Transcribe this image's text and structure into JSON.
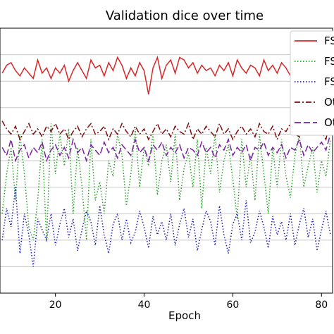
{
  "chart_data": {
    "type": "line",
    "title": "Validation dice over time",
    "xlabel": "Epoch",
    "ylabel": "",
    "xlim": [
      7.5,
      82.5
    ],
    "ylim": [
      0.0,
      1.0
    ],
    "x_ticks": [
      20,
      40,
      60,
      80
    ],
    "grid": "horizontal",
    "legend_position": "top-right",
    "series": [
      {
        "name": "FS",
        "color": "#d62728",
        "style": "solid",
        "x": [
          8,
          9,
          10,
          11,
          12,
          13,
          14,
          15,
          16,
          17,
          18,
          19,
          20,
          21,
          22,
          23,
          24,
          25,
          26,
          27,
          28,
          29,
          30,
          31,
          32,
          33,
          34,
          35,
          36,
          37,
          38,
          39,
          40,
          41,
          42,
          43,
          44,
          45,
          46,
          47,
          48,
          49,
          50,
          51,
          52,
          53,
          54,
          55,
          56,
          57,
          58,
          59,
          60,
          61,
          62,
          63,
          64,
          65,
          66,
          67,
          68,
          69,
          70,
          71,
          72,
          73,
          74,
          75,
          76,
          77,
          78,
          79,
          80,
          81,
          82
        ],
        "values": [
          0.83,
          0.86,
          0.87,
          0.84,
          0.82,
          0.85,
          0.83,
          0.81,
          0.88,
          0.83,
          0.85,
          0.81,
          0.85,
          0.83,
          0.86,
          0.8,
          0.84,
          0.87,
          0.84,
          0.81,
          0.88,
          0.85,
          0.86,
          0.82,
          0.87,
          0.84,
          0.89,
          0.86,
          0.81,
          0.85,
          0.82,
          0.87,
          0.84,
          0.75,
          0.85,
          0.89,
          0.81,
          0.86,
          0.88,
          0.83,
          0.89,
          0.88,
          0.85,
          0.87,
          0.83,
          0.86,
          0.84,
          0.85,
          0.82,
          0.86,
          0.84,
          0.87,
          0.82,
          0.88,
          0.85,
          0.83,
          0.86,
          0.85,
          0.82,
          0.88,
          0.84,
          0.86,
          0.83,
          0.87,
          0.85,
          0.82,
          0.86,
          0.84,
          0.88,
          0.87,
          0.86,
          0.89,
          0.85,
          0.87,
          0.86
        ]
      },
      {
        "name": "FS",
        "color": "#2ca02c",
        "style": "dotted",
        "x": [
          8,
          9,
          10,
          11,
          12,
          13,
          14,
          15,
          16,
          17,
          18,
          19,
          20,
          21,
          22,
          23,
          24,
          25,
          26,
          27,
          28,
          29,
          30,
          31,
          32,
          33,
          34,
          35,
          36,
          37,
          38,
          39,
          40,
          41,
          42,
          43,
          44,
          45,
          46,
          47,
          48,
          49,
          50,
          51,
          52,
          53,
          54,
          55,
          56,
          57,
          58,
          59,
          60,
          61,
          62,
          63,
          64,
          65,
          66,
          67,
          68,
          69,
          70,
          71,
          72,
          73,
          74,
          75,
          76,
          77,
          78,
          79,
          80,
          81,
          82
        ],
        "values": [
          0.3,
          0.45,
          0.55,
          0.35,
          0.6,
          0.45,
          0.25,
          0.2,
          0.35,
          0.58,
          0.2,
          0.64,
          0.45,
          0.6,
          0.48,
          0.62,
          0.3,
          0.55,
          0.4,
          0.2,
          0.58,
          0.35,
          0.42,
          0.3,
          0.5,
          0.44,
          0.6,
          0.52,
          0.33,
          0.45,
          0.62,
          0.4,
          0.55,
          0.48,
          0.6,
          0.37,
          0.5,
          0.56,
          0.42,
          0.6,
          0.35,
          0.47,
          0.53,
          0.4,
          0.58,
          0.32,
          0.55,
          0.45,
          0.6,
          0.38,
          0.5,
          0.56,
          0.43,
          0.28,
          0.58,
          0.4,
          0.52,
          0.35,
          0.6,
          0.45,
          0.3,
          0.55,
          0.4,
          0.58,
          0.44,
          0.36,
          0.52,
          0.6,
          0.4,
          0.48,
          0.55,
          0.38,
          0.5,
          0.44,
          0.58
        ]
      },
      {
        "name": "FS",
        "color": "#1f1fb4",
        "style": "dotted",
        "x": [
          8,
          9,
          10,
          11,
          12,
          13,
          14,
          15,
          16,
          17,
          18,
          19,
          20,
          21,
          22,
          23,
          24,
          25,
          26,
          27,
          28,
          29,
          30,
          31,
          32,
          33,
          34,
          35,
          36,
          37,
          38,
          39,
          40,
          41,
          42,
          43,
          44,
          45,
          46,
          47,
          48,
          49,
          50,
          51,
          52,
          53,
          54,
          55,
          56,
          57,
          58,
          59,
          60,
          61,
          62,
          63,
          64,
          65,
          66,
          67,
          68,
          69,
          70,
          71,
          72,
          73,
          74,
          75,
          76,
          77,
          78,
          79,
          80,
          81,
          82
        ],
        "values": [
          0.2,
          0.32,
          0.25,
          0.4,
          0.15,
          0.3,
          0.22,
          0.1,
          0.28,
          0.24,
          0.2,
          0.3,
          0.18,
          0.26,
          0.32,
          0.21,
          0.28,
          0.16,
          0.24,
          0.31,
          0.27,
          0.18,
          0.33,
          0.22,
          0.15,
          0.26,
          0.3,
          0.2,
          0.28,
          0.19,
          0.23,
          0.31,
          0.25,
          0.17,
          0.29,
          0.22,
          0.27,
          0.2,
          0.3,
          0.18,
          0.26,
          0.32,
          0.21,
          0.28,
          0.16,
          0.24,
          0.31,
          0.27,
          0.18,
          0.33,
          0.22,
          0.15,
          0.26,
          0.3,
          0.2,
          0.35,
          0.19,
          0.23,
          0.31,
          0.25,
          0.17,
          0.29,
          0.22,
          0.27,
          0.2,
          0.3,
          0.18,
          0.26,
          0.32,
          0.21,
          0.28,
          0.16,
          0.24,
          0.31,
          0.22
        ]
      },
      {
        "name": "Ot",
        "color": "#7b0d0d",
        "style": "dashdot",
        "x": [
          8,
          9,
          10,
          11,
          12,
          13,
          14,
          15,
          16,
          17,
          18,
          19,
          20,
          21,
          22,
          23,
          24,
          25,
          26,
          27,
          28,
          29,
          30,
          31,
          32,
          33,
          34,
          35,
          36,
          37,
          38,
          39,
          40,
          41,
          42,
          43,
          44,
          45,
          46,
          47,
          48,
          49,
          50,
          51,
          52,
          53,
          54,
          55,
          56,
          57,
          58,
          59,
          60,
          61,
          62,
          63,
          64,
          65,
          66,
          67,
          68,
          69,
          70,
          71,
          72,
          73,
          74,
          75,
          76,
          77,
          78,
          79,
          80,
          81,
          82
        ],
        "values": [
          0.65,
          0.62,
          0.6,
          0.63,
          0.58,
          0.61,
          0.64,
          0.6,
          0.62,
          0.59,
          0.63,
          0.61,
          0.64,
          0.6,
          0.62,
          0.58,
          0.61,
          0.63,
          0.59,
          0.62,
          0.64,
          0.6,
          0.61,
          0.63,
          0.58,
          0.62,
          0.6,
          0.64,
          0.61,
          0.59,
          0.63,
          0.6,
          0.62,
          0.58,
          0.61,
          0.64,
          0.6,
          0.62,
          0.59,
          0.63,
          0.61,
          0.6,
          0.64,
          0.58,
          0.62,
          0.6,
          0.63,
          0.61,
          0.59,
          0.64,
          0.6,
          0.62,
          0.58,
          0.61,
          0.63,
          0.6,
          0.62,
          0.59,
          0.64,
          0.61,
          0.6,
          0.63,
          0.58,
          0.62,
          0.61,
          0.64,
          0.6,
          0.59,
          0.63,
          0.62,
          0.6,
          0.64,
          0.61,
          0.58,
          0.66
        ]
      },
      {
        "name": "Ot",
        "color": "#7b1fa2",
        "style": "dashed",
        "x": [
          8,
          9,
          10,
          11,
          12,
          13,
          14,
          15,
          16,
          17,
          18,
          19,
          20,
          21,
          22,
          23,
          24,
          25,
          26,
          27,
          28,
          29,
          30,
          31,
          32,
          33,
          34,
          35,
          36,
          37,
          38,
          39,
          40,
          41,
          42,
          43,
          44,
          45,
          46,
          47,
          48,
          49,
          50,
          51,
          52,
          53,
          54,
          55,
          56,
          57,
          58,
          59,
          60,
          61,
          62,
          63,
          64,
          65,
          66,
          67,
          68,
          69,
          70,
          71,
          72,
          73,
          74,
          75,
          76,
          77,
          78,
          79,
          80,
          81,
          82
        ],
        "values": [
          0.55,
          0.52,
          0.58,
          0.5,
          0.54,
          0.56,
          0.51,
          0.55,
          0.53,
          0.57,
          0.5,
          0.54,
          0.56,
          0.52,
          0.55,
          0.51,
          0.58,
          0.53,
          0.55,
          0.5,
          0.56,
          0.54,
          0.52,
          0.57,
          0.53,
          0.55,
          0.51,
          0.56,
          0.54,
          0.52,
          0.58,
          0.53,
          0.55,
          0.5,
          0.56,
          0.54,
          0.57,
          0.52,
          0.55,
          0.53,
          0.56,
          0.51,
          0.55,
          0.54,
          0.52,
          0.57,
          0.53,
          0.55,
          0.51,
          0.56,
          0.54,
          0.58,
          0.52,
          0.55,
          0.53,
          0.56,
          0.5,
          0.55,
          0.54,
          0.57,
          0.52,
          0.55,
          0.53,
          0.56,
          0.51,
          0.55,
          0.54,
          0.58,
          0.52,
          0.56,
          0.53,
          0.55,
          0.57,
          0.54,
          0.6
        ]
      }
    ]
  }
}
